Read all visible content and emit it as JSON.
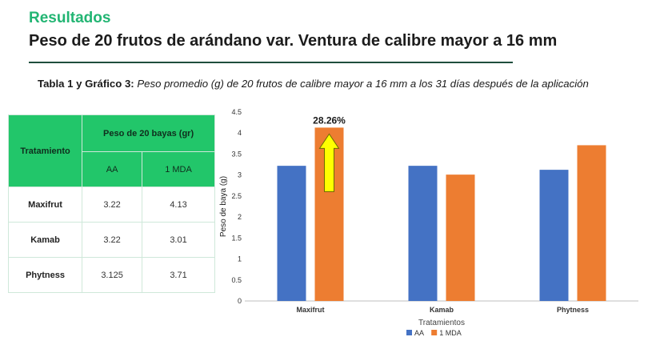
{
  "header": {
    "section": "Resultados",
    "title": "Peso de 20 frutos de arándano var. Ventura de calibre mayor a 16 mm"
  },
  "caption": {
    "lead": "Tabla 1 y Gráfico 3:",
    "text": "Peso promedio (g) de 20 frutos de calibre mayor a 16 mm a los 31 días después de la aplicación"
  },
  "table": {
    "row_header": "Tratamiento",
    "group_header": "Peso de 20 bayas (gr)",
    "columns": [
      "AA",
      "1 MDA"
    ],
    "rows": [
      {
        "name": "Maxifrut",
        "values": [
          "3.22",
          "4.13"
        ]
      },
      {
        "name": "Kamab",
        "values": [
          "3.22",
          "3.01"
        ]
      },
      {
        "name": "Phytness",
        "values": [
          "3.125",
          "3.71"
        ]
      }
    ]
  },
  "chart_data": {
    "type": "bar",
    "categories": [
      "Maxifrut",
      "Kamab",
      "Phytness"
    ],
    "series": [
      {
        "name": "AA",
        "values": [
          3.22,
          3.22,
          3.125
        ],
        "color": "#4472c4"
      },
      {
        "name": "1 MDA",
        "values": [
          4.13,
          3.01,
          3.71
        ],
        "color": "#ed7d31"
      }
    ],
    "xlabel": "Tratamientos",
    "ylabel": "Peso de baya (g)",
    "ylim": [
      0,
      4.5
    ],
    "yticks": [
      "0",
      "0.5",
      "1",
      "1.5",
      "2",
      "2.5",
      "3",
      "3.5",
      "4",
      "4.5"
    ],
    "grid": false,
    "legend_position": "bottom",
    "annotation": {
      "text": "28.26%",
      "category": "Maxifrut",
      "series": "1 MDA",
      "arrow_color": "#ffff00"
    }
  }
}
